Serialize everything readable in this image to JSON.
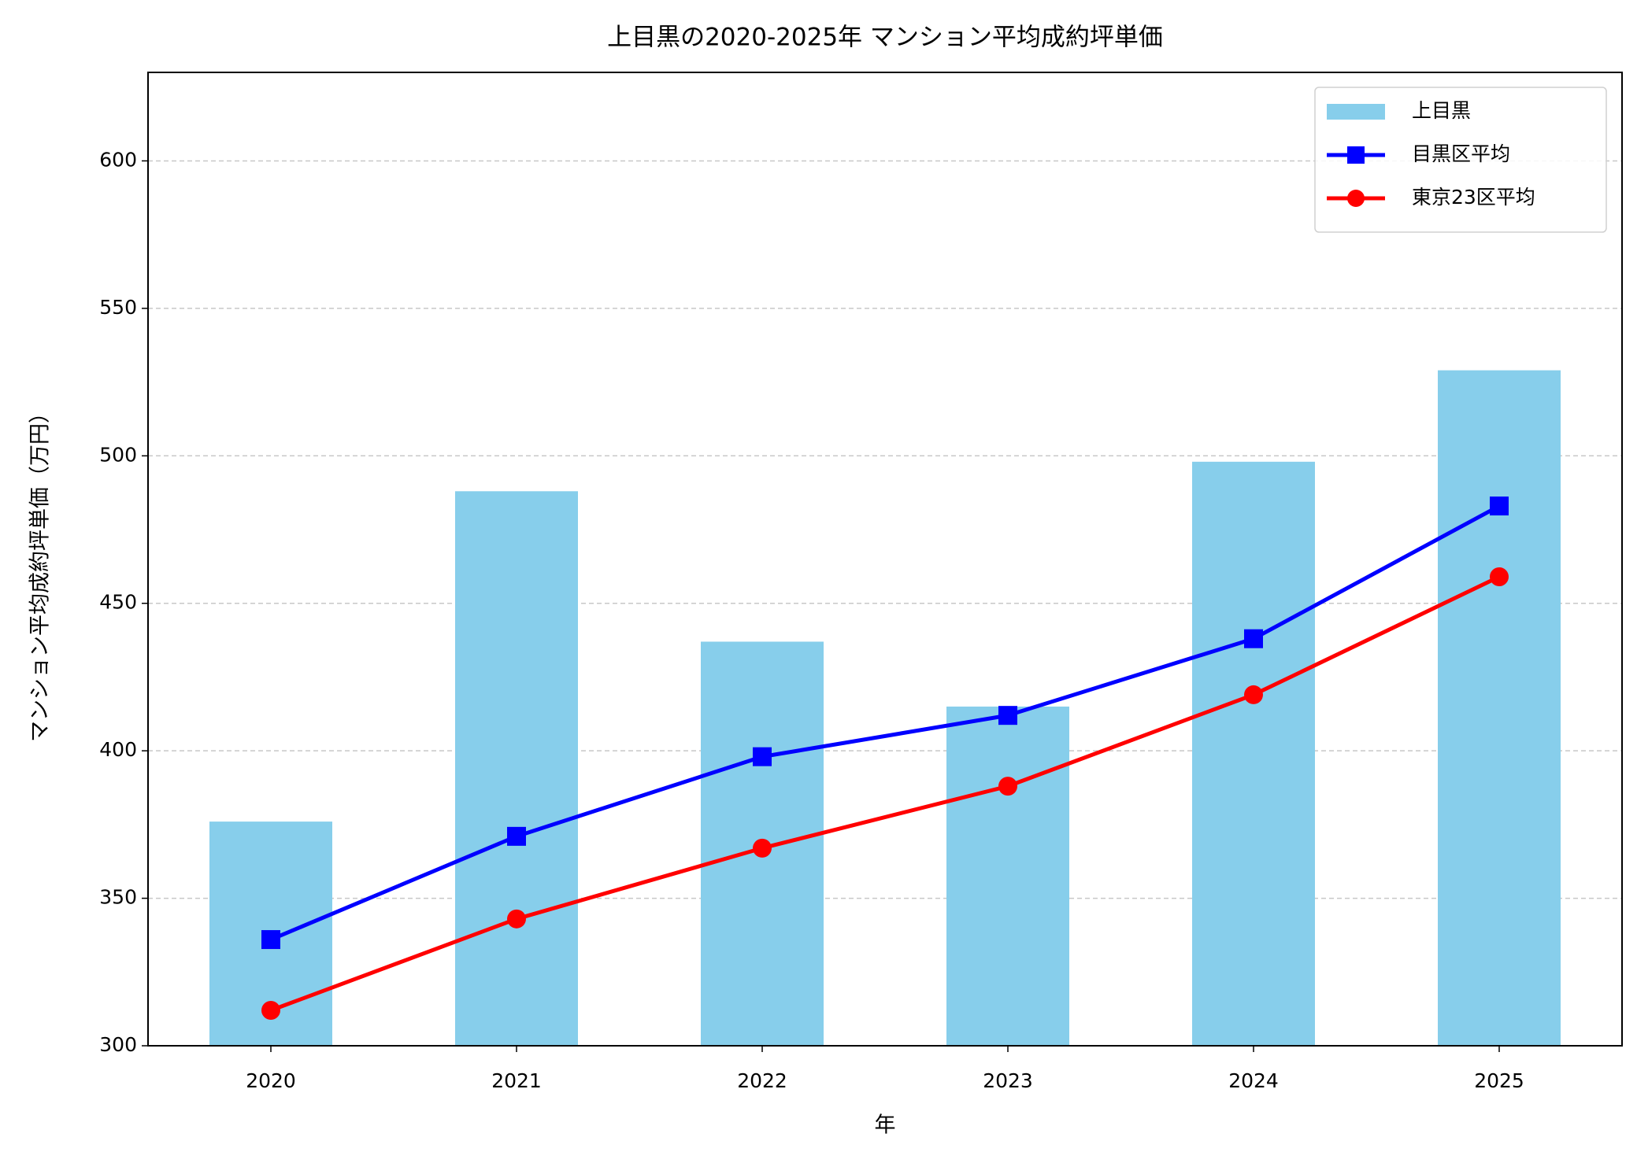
{
  "chart_data": {
    "type": "bar",
    "title": "上目黒の2020-2025年 マンション平均成約坪単価",
    "x_label": "年",
    "y_label": "マンション平均成約坪単価（万円）",
    "categories": [
      "2020",
      "2021",
      "2022",
      "2023",
      "2024",
      "2025"
    ],
    "series": [
      {
        "name": "上目黒",
        "kind": "bar",
        "color": "#87ceeb",
        "values": [
          376,
          488,
          437,
          415,
          498,
          529
        ]
      },
      {
        "name": "目黒区平均",
        "kind": "line",
        "marker": "square",
        "color": "#0000ff",
        "values": [
          336,
          371,
          398,
          412,
          438,
          483
        ]
      },
      {
        "name": "東京23区平均",
        "kind": "line",
        "marker": "circle",
        "color": "#ff0000",
        "values": [
          312,
          343,
          367,
          388,
          419,
          459
        ]
      }
    ],
    "ylim": [
      300,
      630
    ],
    "yticks": [
      300,
      350,
      400,
      450,
      500,
      550,
      600
    ],
    "grid": true,
    "legend": "upper right"
  }
}
